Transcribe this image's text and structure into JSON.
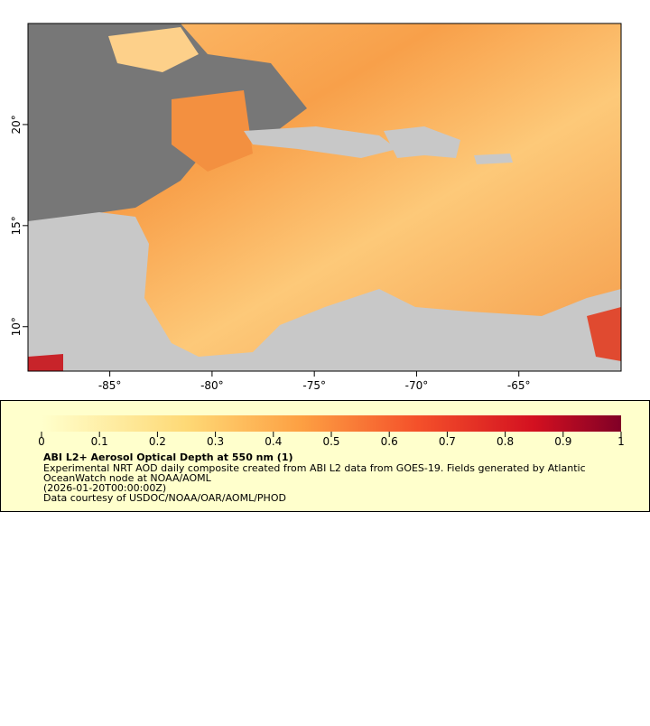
{
  "chart_data": {
    "type": "map",
    "xlim": [
      -89,
      -60
    ],
    "ylim": [
      7.8,
      25
    ],
    "xticks": [
      {
        "value": -85,
        "label": "-85°"
      },
      {
        "value": -80,
        "label": "-80°"
      },
      {
        "value": -75,
        "label": "-75°"
      },
      {
        "value": -70,
        "label": "-70°"
      },
      {
        "value": -65,
        "label": "-65°"
      }
    ],
    "yticks": [
      {
        "value": 10,
        "label": "10°"
      },
      {
        "value": 15,
        "label": "15°"
      },
      {
        "value": 20,
        "label": "20°"
      }
    ]
  },
  "colorbar": {
    "title": "ABI L2+ Aerosol Optical Depth at 550 nm (1)",
    "lim": [
      0,
      1
    ],
    "ticks": [
      0,
      0.1,
      0.2,
      0.3,
      0.4,
      0.5,
      0.6,
      0.7,
      0.8,
      0.9,
      1
    ]
  },
  "notes": [
    "Experimental NRT AOD daily composite created from ABI L2 data from GOES-19. Fields generated by Atlantic",
    "OceanWatch node at NOAA/AOML",
    "(2026-01-20T00:00:00Z)",
    "Data courtesy of USDOC/NOAA/OAR/AOML/PHOD"
  ]
}
